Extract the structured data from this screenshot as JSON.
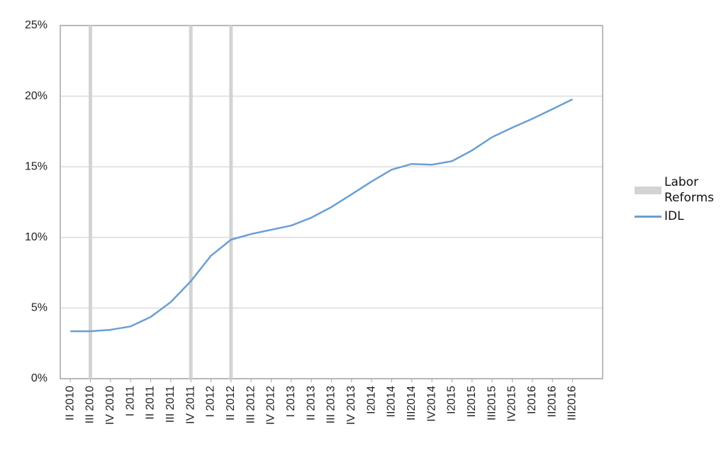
{
  "chart_data": {
    "type": "line",
    "categories": [
      "II 2010",
      "III 2010",
      "IV 2010",
      "I 2011",
      "II 2011",
      "III 2011",
      "IV 2011",
      "I 2012",
      "II 2012",
      "III 2012",
      "IV 2012",
      "I 2013",
      "II 2013",
      "III 2013",
      "IV 2013",
      "I2014",
      "II2014",
      "III2014",
      "IV2014",
      "I2015",
      "II2015",
      "III2015",
      "IV2015",
      "I2016",
      "II2016",
      "III2016"
    ],
    "series": [
      {
        "name": "IDL",
        "color": "#6a9fd4",
        "values": [
          3.36,
          3.36,
          3.46,
          3.7,
          4.37,
          5.42,
          6.9,
          8.7,
          9.84,
          10.24,
          10.54,
          10.84,
          11.4,
          12.15,
          13.05,
          13.96,
          14.8,
          15.2,
          15.15,
          15.4,
          16.16,
          17.1,
          17.77,
          18.4,
          19.08,
          19.78
        ]
      }
    ],
    "reforms": {
      "name": "Labor Reforms",
      "color": "#d3d3d3",
      "categories": [
        "III 2010",
        "IV 2011",
        "II 2012"
      ]
    },
    "ylim": [
      0,
      25
    ],
    "yticks": [
      {
        "value": 0,
        "label": "0%"
      },
      {
        "value": 5,
        "label": "5%"
      },
      {
        "value": 10,
        "label": "10%"
      },
      {
        "value": 15,
        "label": "15%"
      },
      {
        "value": 20,
        "label": "20%"
      },
      {
        "value": 25,
        "label": "25%"
      }
    ],
    "grid": true,
    "legend": "right"
  }
}
